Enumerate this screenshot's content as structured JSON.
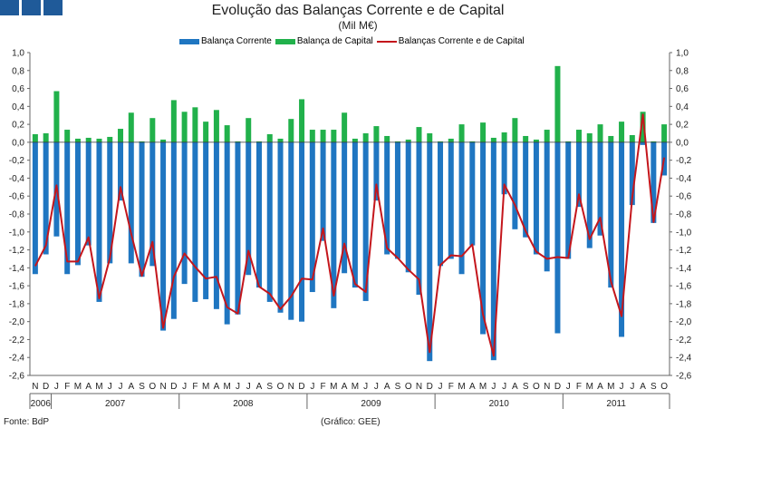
{
  "header": {
    "title": "Evolução das Balanças Corrente e de Capital",
    "subtitle": "(Mil M€)"
  },
  "footer": {
    "source": "Fonte: BdP",
    "credit": "(Gráfico: GEE)"
  },
  "colors": {
    "current": "#1f76c1",
    "capital": "#21b14b",
    "combined": "#c4161c",
    "axis": "#666666",
    "logo": "#1f5a99"
  },
  "chart_data": {
    "type": "bar",
    "ylim": [
      -2.6,
      1.0
    ],
    "yticks": [
      "1,0",
      "0,8",
      "0,6",
      "0,4",
      "0,2",
      "0,0",
      "-0,2",
      "-0,4",
      "-0,6",
      "-0,8",
      "-1,0",
      "-1,2",
      "-1,4",
      "-1,6",
      "-1,8",
      "-2,0",
      "-2,2",
      "-2,4",
      "-2,6"
    ],
    "grid": false,
    "legend_position": "top",
    "month_labels": [
      "N",
      "D",
      "J",
      "F",
      "M",
      "A",
      "M",
      "J",
      "J",
      "A",
      "S",
      "O",
      "N",
      "D",
      "J",
      "F",
      "M",
      "A",
      "M",
      "J",
      "J",
      "A",
      "S",
      "O",
      "N",
      "D",
      "J",
      "F",
      "M",
      "A",
      "M",
      "J",
      "J",
      "A",
      "S",
      "O",
      "N",
      "D",
      "J",
      "F",
      "M",
      "A",
      "M",
      "J",
      "J",
      "A",
      "S",
      "O",
      "N",
      "D",
      "J",
      "F",
      "M",
      "A",
      "M",
      "J",
      "J",
      "A",
      "S",
      "O"
    ],
    "years": [
      {
        "label": "2006",
        "start": 0,
        "end": 2
      },
      {
        "label": "2007",
        "start": 2,
        "end": 14
      },
      {
        "label": "2008",
        "start": 14,
        "end": 26
      },
      {
        "label": "2009",
        "start": 26,
        "end": 38
      },
      {
        "label": "2010",
        "start": 38,
        "end": 50
      },
      {
        "label": "2011",
        "start": 50,
        "end": 60
      }
    ],
    "series": [
      {
        "name": "Balança Corrente",
        "values": [
          -1.47,
          -1.25,
          -1.05,
          -1.47,
          -1.37,
          -1.15,
          -1.78,
          -1.35,
          -0.65,
          -1.35,
          -1.5,
          -1.38,
          -2.1,
          -1.97,
          -1.58,
          -1.78,
          -1.75,
          -1.86,
          -2.03,
          -1.92,
          -1.48,
          -1.62,
          -1.78,
          -1.9,
          -1.98,
          -2.0,
          -1.67,
          -1.1,
          -1.85,
          -1.46,
          -1.62,
          -1.77,
          -0.65,
          -1.25,
          -1.3,
          -1.45,
          -1.7,
          -2.44,
          -1.38,
          -1.3,
          -1.47,
          -1.15,
          -2.14,
          -2.43,
          -0.58,
          -0.97,
          -1.06,
          -1.25,
          -1.44,
          -2.13,
          -1.3,
          -0.72,
          -1.18,
          -1.04,
          -1.62,
          -2.17,
          -0.7,
          -0.03,
          -0.9,
          -0.37
        ]
      },
      {
        "name": "Balança de Capital",
        "values": [
          0.09,
          0.1,
          0.57,
          0.14,
          0.04,
          0.05,
          0.04,
          0.06,
          0.15,
          0.33,
          0.01,
          0.27,
          0.03,
          0.47,
          0.34,
          0.39,
          0.23,
          0.36,
          0.19,
          0.01,
          0.27,
          0.01,
          0.09,
          0.04,
          0.26,
          0.48,
          0.14,
          0.14,
          0.14,
          0.33,
          0.04,
          0.1,
          0.18,
          0.07,
          0.01,
          0.03,
          0.17,
          0.1,
          0.01,
          0.04,
          0.2,
          0.01,
          0.22,
          0.05,
          0.11,
          0.27,
          0.07,
          0.03,
          0.14,
          0.85,
          0.01,
          0.14,
          0.1,
          0.2,
          0.07,
          0.23,
          0.08,
          0.34,
          0.01,
          0.2
        ]
      },
      {
        "name": "Balanças Corrente e de Capital",
        "values": [
          -1.38,
          -1.15,
          -0.48,
          -1.33,
          -1.33,
          -1.06,
          -1.74,
          -1.29,
          -0.5,
          -1.02,
          -1.49,
          -1.11,
          -2.07,
          -1.5,
          -1.24,
          -1.39,
          -1.52,
          -1.5,
          -1.84,
          -1.91,
          -1.21,
          -1.61,
          -1.69,
          -1.86,
          -1.72,
          -1.52,
          -1.53,
          -0.96,
          -1.71,
          -1.13,
          -1.58,
          -1.67,
          -0.47,
          -1.18,
          -1.29,
          -1.42,
          -1.53,
          -2.34,
          -1.37,
          -1.26,
          -1.27,
          -1.14,
          -1.92,
          -2.38,
          -0.47,
          -0.7,
          -0.99,
          -1.22,
          -1.3,
          -1.28,
          -1.29,
          -0.58,
          -1.08,
          -0.84,
          -1.55,
          -1.94,
          -0.62,
          0.31,
          -0.89,
          -0.17
        ]
      }
    ]
  }
}
